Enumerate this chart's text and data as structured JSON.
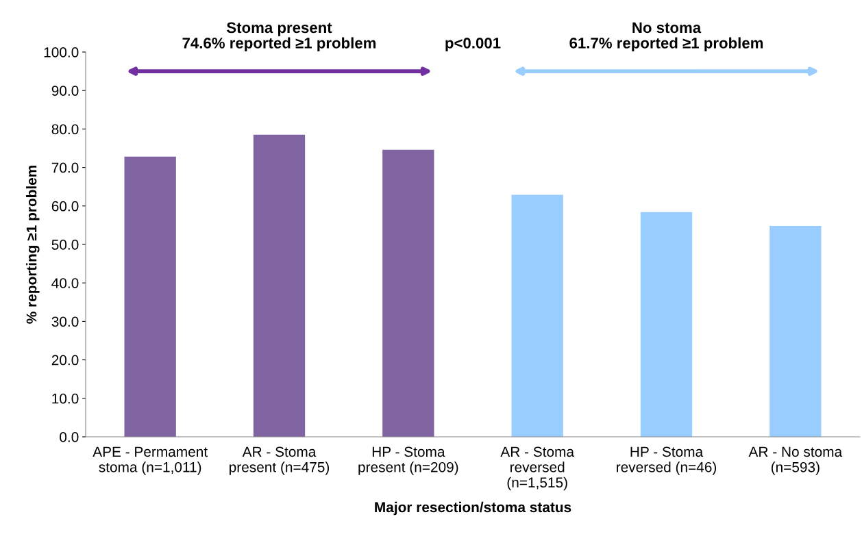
{
  "chart_data": {
    "type": "bar",
    "categories": [
      "APE - Permament\nstoma (n=1,011)",
      "AR - Stoma\npresent (n=475)",
      "HP - Stoma\npresent (n=209)",
      "AR - Stoma\nreversed\n(n=1,515)",
      "HP - Stoma\nreversed (n=46)",
      "AR - No stoma\n(n=593)"
    ],
    "values": [
      72.8,
      78.5,
      74.6,
      62.9,
      58.4,
      54.8
    ],
    "colors": [
      "#8064a2",
      "#8064a2",
      "#8064a2",
      "#99ccff",
      "#99ccff",
      "#99ccff"
    ],
    "xlabel": "Major resection/stoma status",
    "ylabel": "% reporting ≥1 problem",
    "ylim": [
      0,
      100
    ],
    "yticks": [
      {
        "value": 0,
        "label": "0.0"
      },
      {
        "value": 10,
        "label": "10.0"
      },
      {
        "value": 20,
        "label": "20.0"
      },
      {
        "value": 30,
        "label": "30.0"
      },
      {
        "value": 40,
        "label": "40.0"
      },
      {
        "value": 50,
        "label": "50.0"
      },
      {
        "value": 60,
        "label": "60.0"
      },
      {
        "value": 70,
        "label": "70.0"
      },
      {
        "value": 80,
        "label": "80.0"
      },
      {
        "value": 90,
        "label": "90.0"
      },
      {
        "value": 100,
        "label": "100.0"
      }
    ],
    "grid": false,
    "legend": false,
    "annotations": [
      "Stoma present",
      "74.6% reported ≥1 problem",
      "p<0.001",
      "No stoma",
      "61.7% reported ≥1 problem"
    ]
  }
}
